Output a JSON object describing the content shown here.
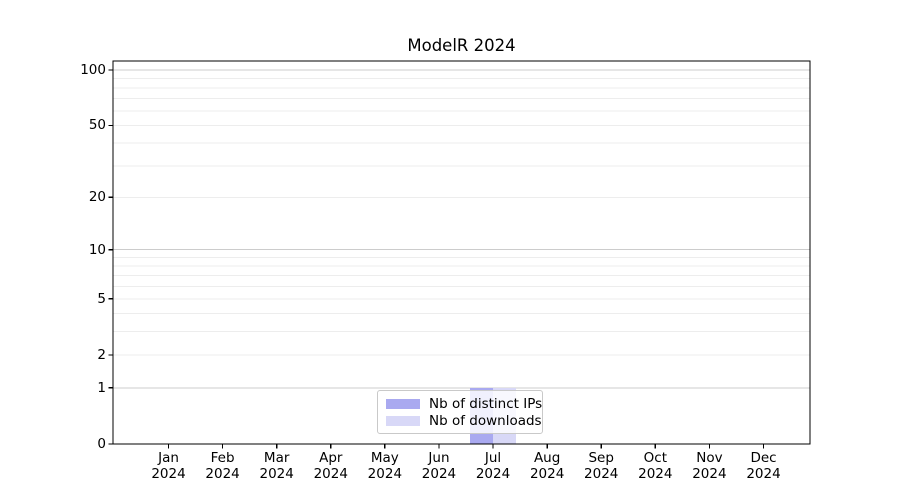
{
  "chart_data": {
    "type": "bar",
    "title": "ModelR 2024",
    "xlabel": "",
    "ylabel": "",
    "y_scale": "log1p",
    "ylim": [
      0,
      112
    ],
    "grid": true,
    "y_ticks": [
      0,
      1,
      2,
      5,
      10,
      20,
      50,
      100
    ],
    "y_major_gridlines": [
      1,
      10,
      100
    ],
    "y_minor_gridlines": [
      2,
      3,
      4,
      5,
      6,
      7,
      8,
      9,
      20,
      30,
      40,
      50,
      60,
      70,
      80,
      90
    ],
    "x_tick_labels": [
      {
        "month": "Jan",
        "year": "2024"
      },
      {
        "month": "Feb",
        "year": "2024"
      },
      {
        "month": "Mar",
        "year": "2024"
      },
      {
        "month": "Apr",
        "year": "2024"
      },
      {
        "month": "May",
        "year": "2024"
      },
      {
        "month": "Jun",
        "year": "2024"
      },
      {
        "month": "Jul",
        "year": "2024"
      },
      {
        "month": "Aug",
        "year": "2024"
      },
      {
        "month": "Sep",
        "year": "2024"
      },
      {
        "month": "Oct",
        "year": "2024"
      },
      {
        "month": "Nov",
        "year": "2024"
      },
      {
        "month": "Dec",
        "year": "2024"
      }
    ],
    "categories": [
      "Jan 2024",
      "Feb 2024",
      "Mar 2024",
      "Apr 2024",
      "May 2024",
      "Jun 2024",
      "Jul 2024",
      "Aug 2024",
      "Sep 2024",
      "Oct 2024",
      "Nov 2024",
      "Dec 2024"
    ],
    "series": [
      {
        "name": "Nb of distinct IPs",
        "color": "#a9a9f0",
        "values": [
          0,
          0,
          0,
          0,
          0,
          0,
          1,
          0,
          0,
          0,
          0,
          0
        ]
      },
      {
        "name": "Nb of downloads",
        "color": "#d8d8f7",
        "values": [
          0,
          0,
          0,
          0,
          0,
          0,
          1,
          0,
          0,
          0,
          0,
          0
        ]
      }
    ],
    "legend": {
      "position": "lower center",
      "entries": [
        "Nb of distinct IPs",
        "Nb of downloads"
      ]
    }
  },
  "colors": {
    "spine": "#000000",
    "tick": "#000000",
    "major_grid": "#cccccc",
    "minor_grid": "#ededed",
    "text": "#000000",
    "legend_border": "#c9c9c9"
  }
}
